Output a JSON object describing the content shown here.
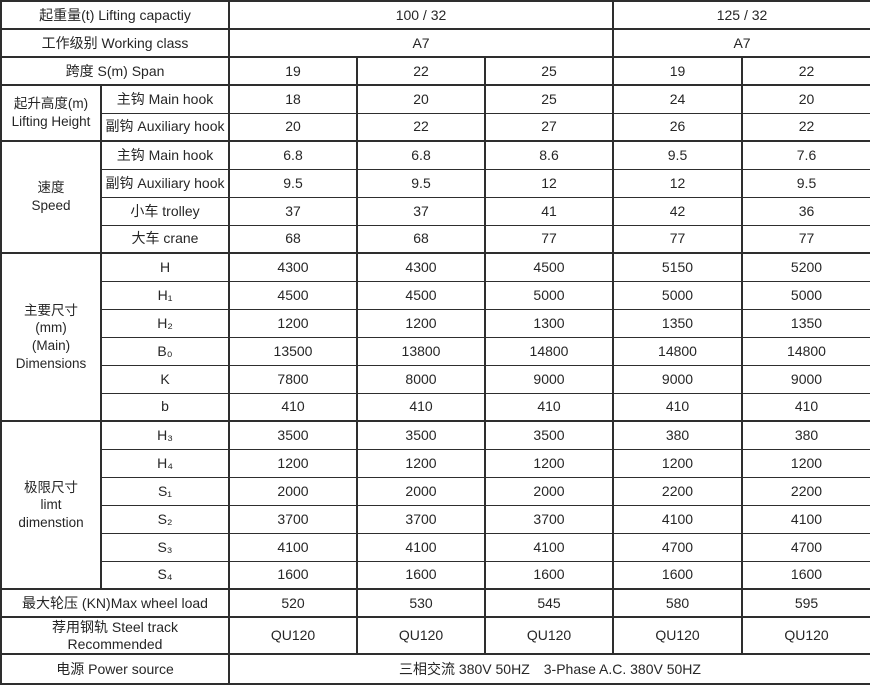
{
  "top": [
    {
      "label": "起重量(t) Lifting capactiy",
      "v1": "100 / 32",
      "v2": "125 / 32"
    },
    {
      "label": "工作级别 Working class",
      "v1": "A7",
      "v2": "A7"
    }
  ],
  "span_row": {
    "label": "跨度 S(m) Span",
    "values": [
      "19",
      "22",
      "25",
      "19",
      "22"
    ]
  },
  "groups": [
    {
      "label": "起升高度(m)\nLifting Height",
      "rows": [
        {
          "label": "主钩 Main hook",
          "values": [
            "18",
            "20",
            "25",
            "24",
            "20"
          ]
        },
        {
          "label": "副钩 Auxiliary hook",
          "values": [
            "20",
            "22",
            "27",
            "26",
            "22"
          ]
        }
      ]
    },
    {
      "label": "速度\nSpeed",
      "rows": [
        {
          "label": "主钩 Main hook",
          "values": [
            "6.8",
            "6.8",
            "8.6",
            "9.5",
            "7.6"
          ]
        },
        {
          "label": "副钩 Auxiliary hook",
          "values": [
            "9.5",
            "9.5",
            "12",
            "12",
            "9.5"
          ]
        },
        {
          "label": "小车 trolley",
          "values": [
            "37",
            "37",
            "41",
            "42",
            "36"
          ]
        },
        {
          "label": "大车 crane",
          "values": [
            "68",
            "68",
            "77",
            "77",
            "77"
          ]
        }
      ]
    },
    {
      "label": "主要尺寸\n(mm)\n(Main)\nDimensions",
      "rows": [
        {
          "label": "H",
          "values": [
            "4300",
            "4300",
            "4500",
            "5150",
            "5200"
          ]
        },
        {
          "label": "H₁",
          "values": [
            "4500",
            "4500",
            "5000",
            "5000",
            "5000"
          ]
        },
        {
          "label": "H₂",
          "values": [
            "1200",
            "1200",
            "1300",
            "1350",
            "1350"
          ]
        },
        {
          "label": "B₀",
          "values": [
            "13500",
            "13800",
            "14800",
            "14800",
            "14800"
          ]
        },
        {
          "label": "K",
          "values": [
            "7800",
            "8000",
            "9000",
            "9000",
            "9000"
          ]
        },
        {
          "label": "b",
          "values": [
            "410",
            "410",
            "410",
            "410",
            "410"
          ]
        }
      ]
    },
    {
      "label": "极限尺寸\nlimt\ndimenstion",
      "rows": [
        {
          "label": "H₃",
          "values": [
            "3500",
            "3500",
            "3500",
            "380",
            "380"
          ]
        },
        {
          "label": "H₄",
          "values": [
            "1200",
            "1200",
            "1200",
            "1200",
            "1200"
          ]
        },
        {
          "label": "S₁",
          "values": [
            "2000",
            "2000",
            "2000",
            "2200",
            "2200"
          ]
        },
        {
          "label": "S₂",
          "values": [
            "3700",
            "3700",
            "3700",
            "4100",
            "4100"
          ]
        },
        {
          "label": "S₃",
          "values": [
            "4100",
            "4100",
            "4100",
            "4700",
            "4700"
          ]
        },
        {
          "label": "S₄",
          "values": [
            "1600",
            "1600",
            "1600",
            "1600",
            "1600"
          ]
        }
      ]
    }
  ],
  "bottom": [
    {
      "label": "最大轮压 (KN)Max wheel load",
      "values": [
        "520",
        "530",
        "545",
        "580",
        "595"
      ]
    },
    {
      "label": "荐用钢轨 Steel track\nRecommended",
      "values": [
        "QU120",
        "QU120",
        "QU120",
        "QU120",
        "QU120"
      ]
    }
  ],
  "power_row": {
    "label": "电源 Power source",
    "value": "三相交流 380V 50HZ  3-Phase A.C. 380V 50HZ"
  }
}
